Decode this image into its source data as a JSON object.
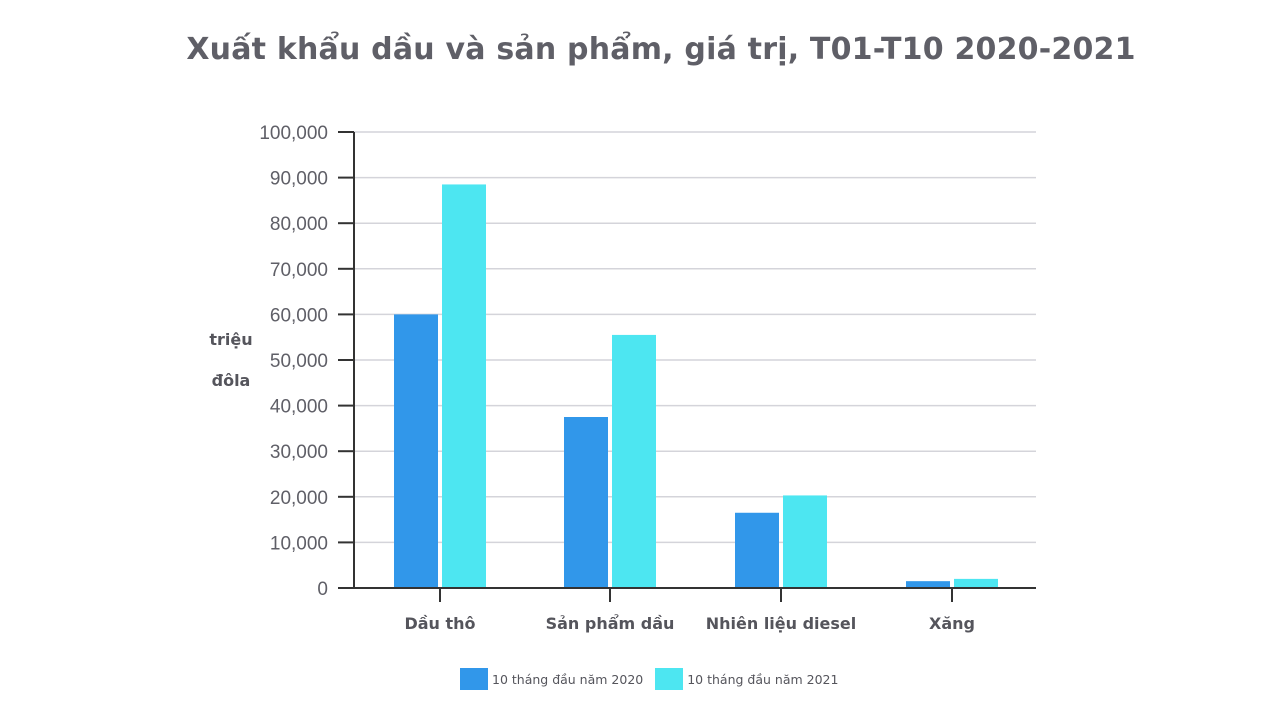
{
  "chart_data": {
    "type": "bar",
    "title": "Xuất khẩu dầu và sản phẩm, giá trị, T01-T10 2020-2021",
    "ylabel": [
      "triệu",
      "đôla"
    ],
    "xlabel": "",
    "categories": [
      "Dầu thô",
      "Sản phẩm dầu",
      "Nhiên liệu diesel",
      "Xăng"
    ],
    "series": [
      {
        "name": "10 tháng đầu năm 2020",
        "color": "#3197ea",
        "values": [
          60000,
          37500,
          16500,
          1500
        ]
      },
      {
        "name": "10 tháng đầu năm 2021",
        "color": "#4de6f1",
        "values": [
          88500,
          55500,
          20300,
          2000
        ]
      }
    ],
    "ylim": [
      0,
      100000
    ],
    "yticks": [
      0,
      10000,
      20000,
      30000,
      40000,
      50000,
      60000,
      70000,
      80000,
      90000,
      100000
    ],
    "ytick_labels": [
      "0",
      "10,000",
      "20,000",
      "30,000",
      "40,000",
      "50,000",
      "60,000",
      "70,000",
      "80,000",
      "90,000",
      "100,000"
    ],
    "grid": true,
    "legend_position": "bottom-center"
  }
}
